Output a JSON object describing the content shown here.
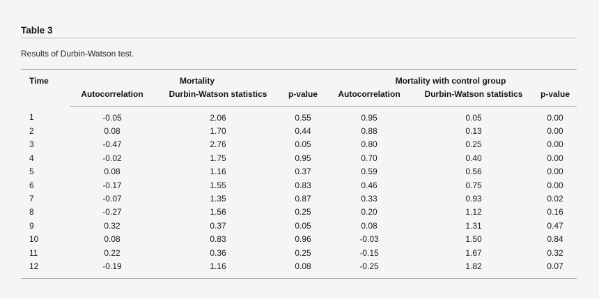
{
  "doc": {
    "table_label": "Table 3",
    "caption": "Results of Durbin-Watson test.",
    "table": {
      "time_header": "Time",
      "groups": [
        {
          "label": "Mortality",
          "columns": [
            "Autocorrelation",
            "Durbin-Watson statistics",
            "p-value"
          ]
        },
        {
          "label": "Mortality with control group",
          "columns": [
            "Autocorrelation",
            "Durbin-Watson statistics",
            "p-value"
          ]
        }
      ],
      "rows": [
        [
          "1",
          "-0.05",
          "2.06",
          "0.55",
          "0.95",
          "0.05",
          "0.00"
        ],
        [
          "2",
          "0.08",
          "1.70",
          "0.44",
          "0.88",
          "0.13",
          "0.00"
        ],
        [
          "3",
          "-0.47",
          "2.76",
          "0.05",
          "0.80",
          "0.25",
          "0.00"
        ],
        [
          "4",
          "-0.02",
          "1.75",
          "0.95",
          "0.70",
          "0.40",
          "0.00"
        ],
        [
          "5",
          "0.08",
          "1.16",
          "0.37",
          "0.59",
          "0.56",
          "0.00"
        ],
        [
          "6",
          "-0.17",
          "1.55",
          "0.83",
          "0.46",
          "0.75",
          "0.00"
        ],
        [
          "7",
          "-0.07",
          "1.35",
          "0.87",
          "0.33",
          "0.93",
          "0.02"
        ],
        [
          "8",
          "-0.27",
          "1.56",
          "0.25",
          "0.20",
          "1.12",
          "0.16"
        ],
        [
          "9",
          "0.32",
          "0.37",
          "0.05",
          "0.08",
          "1.31",
          "0.47"
        ],
        [
          "10",
          "0.08",
          "0.83",
          "0.96",
          "-0.03",
          "1.50",
          "0.84"
        ],
        [
          "11",
          "0.22",
          "0.36",
          "0.25",
          "-0.15",
          "1.67",
          "0.32"
        ],
        [
          "12",
          "-0.19",
          "1.16",
          "0.08",
          "-0.25",
          "1.82",
          "0.07"
        ]
      ]
    },
    "colors": {
      "background": "#f5f5f6",
      "text": "#1b1b1b",
      "rule": "#aaadb0"
    }
  }
}
